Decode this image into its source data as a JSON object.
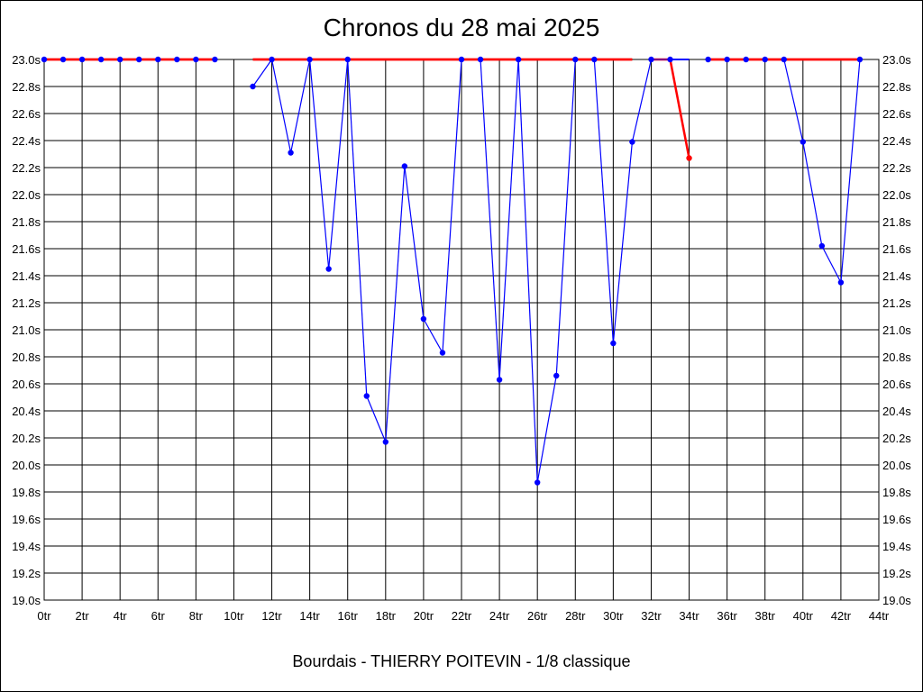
{
  "chart_data": {
    "type": "line",
    "title": "Chronos du 28 mai 2025",
    "subtitle": "Bourdais - THIERRY POITEVIN - 1/8 classique",
    "ylim": [
      19.0,
      23.0
    ],
    "xlim": [
      0,
      44
    ],
    "y_ticks": [
      "23.0s",
      "22.8s",
      "22.6s",
      "22.4s",
      "22.2s",
      "22.0s",
      "21.8s",
      "21.6s",
      "21.4s",
      "21.2s",
      "21.0s",
      "20.8s",
      "20.6s",
      "20.4s",
      "20.2s",
      "20.0s",
      "19.8s",
      "19.6s",
      "19.4s",
      "19.2s",
      "19.0s"
    ],
    "x_ticks": [
      "0tr",
      "2tr",
      "4tr",
      "6tr",
      "8tr",
      "10tr",
      "12tr",
      "14tr",
      "16tr",
      "18tr",
      "20tr",
      "22tr",
      "24tr",
      "26tr",
      "28tr",
      "30tr",
      "32tr",
      "34tr",
      "36tr",
      "38tr",
      "40tr",
      "42tr",
      "44tr"
    ],
    "grid": true,
    "series": [
      {
        "color": "#0000ff",
        "points": [
          [
            0,
            23.0
          ],
          [
            1,
            23.0
          ],
          [
            2,
            23.0
          ],
          [
            3,
            23.0
          ],
          [
            4,
            23.0
          ],
          [
            5,
            23.0
          ],
          [
            6,
            23.0
          ],
          [
            7,
            23.0
          ],
          [
            8,
            23.0
          ],
          [
            9,
            23.0
          ],
          [
            11,
            22.8
          ],
          [
            12,
            23.0
          ],
          [
            13,
            22.31
          ],
          [
            14,
            23.0
          ],
          [
            15,
            21.45
          ],
          [
            16,
            23.0
          ],
          [
            17,
            20.51
          ],
          [
            18,
            20.17
          ],
          [
            19,
            22.21
          ],
          [
            20,
            21.08
          ],
          [
            21,
            20.83
          ],
          [
            22,
            23.0
          ],
          [
            23,
            23.0
          ],
          [
            24,
            20.63
          ],
          [
            25,
            23.0
          ],
          [
            26,
            19.87
          ],
          [
            27,
            20.66
          ],
          [
            28,
            23.0
          ],
          [
            29,
            23.0
          ],
          [
            30,
            20.9
          ],
          [
            31,
            22.39
          ],
          [
            32,
            23.0
          ],
          [
            33,
            23.0
          ],
          [
            35,
            23.0
          ],
          [
            36,
            23.0
          ],
          [
            37,
            23.0
          ],
          [
            38,
            23.0
          ],
          [
            39,
            23.0
          ],
          [
            40,
            22.39
          ],
          [
            41,
            21.62
          ],
          [
            42,
            21.35
          ],
          [
            43,
            23.0
          ]
        ]
      }
    ],
    "red_segments": [
      [
        [
          0,
          23.0
        ],
        [
          9,
          23.0
        ]
      ],
      [
        [
          11,
          23.0
        ],
        [
          31,
          23.0
        ]
      ],
      [
        [
          32,
          23.0
        ],
        [
          33,
          23.0
        ]
      ],
      [
        [
          33,
          23.0
        ],
        [
          34,
          22.27
        ]
      ],
      [
        [
          35,
          23.0
        ],
        [
          43,
          23.0
        ]
      ]
    ],
    "red_points": [
      [
        34,
        22.27
      ]
    ],
    "red_color": "#ff0000"
  }
}
